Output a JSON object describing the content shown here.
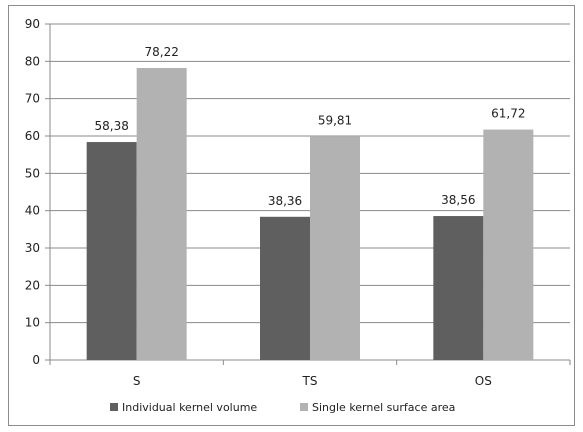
{
  "chart_data": {
    "type": "bar",
    "categories": [
      "S",
      "TS",
      "OS"
    ],
    "series": [
      {
        "name": "Individual kernel volume",
        "values": [
          58.38,
          38.36,
          38.56
        ],
        "labels": [
          "58,38",
          "38,36",
          "38,56"
        ],
        "color": "#5f5f5f"
      },
      {
        "name": "Single kernel surface area",
        "values": [
          78.22,
          59.81,
          61.72
        ],
        "labels": [
          "78,22",
          "59,81",
          "61,72"
        ],
        "color": "#b2b2b2"
      }
    ],
    "ylim": [
      0,
      90
    ],
    "yticks": [
      0,
      10,
      20,
      30,
      40,
      50,
      60,
      70,
      80,
      90
    ],
    "grid": true,
    "legend_position": "bottom"
  }
}
